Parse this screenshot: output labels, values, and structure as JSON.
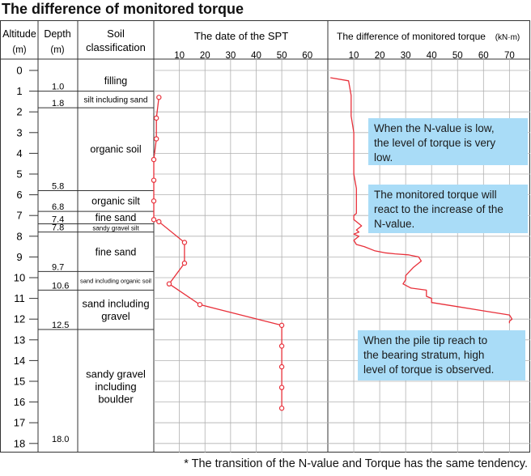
{
  "title": "The difference of monitored torque",
  "footnote": "* The transition of the N-value and Torque has the same tendency.",
  "headers": {
    "altitude": [
      "Altitude",
      "(m)"
    ],
    "depth": [
      "Depth",
      "(m)"
    ],
    "soil": [
      "Soil",
      "classification"
    ],
    "spt": "The date of the SPT",
    "torque": "The difference of monitored torque",
    "torque_unit": "(kN·m)"
  },
  "altitude_ticks": [
    "0",
    "1",
    "2",
    "3",
    "4",
    "5",
    "6",
    "7",
    "8",
    "9",
    "10",
    "11",
    "12",
    "13",
    "14",
    "15",
    "16",
    "17",
    "18"
  ],
  "depth_labels": [
    "1.0",
    "1.8",
    "5.8",
    "6.8",
    "7.4",
    "7.8",
    "9.7",
    "10.6",
    "12.5",
    "18.0"
  ],
  "soil_layers": [
    {
      "name": "filling",
      "lines": [
        "filling"
      ]
    },
    {
      "name": "silt including sand",
      "lines": [
        "silt including sand"
      ]
    },
    {
      "name": "organic soil",
      "lines": [
        "organic soil"
      ]
    },
    {
      "name": "organic silt",
      "lines": [
        "organic silt"
      ]
    },
    {
      "name": "fine sand",
      "lines": [
        "fine sand"
      ]
    },
    {
      "name": "sandy gravel silt",
      "lines": [
        "sandy gravel silt"
      ]
    },
    {
      "name": "fine sand",
      "lines": [
        "fine sand"
      ]
    },
    {
      "name": "sand including organic soil",
      "lines": [
        "sand including organic soil"
      ]
    },
    {
      "name": "sand including gravel",
      "lines": [
        "sand including",
        "gravel"
      ]
    },
    {
      "name": "sandy gravel including boulder",
      "lines": [
        "sandy gravel",
        "including",
        "boulder"
      ]
    }
  ],
  "annotations": [
    {
      "lines": [
        "When the N-value is low,",
        "the level of torque is very",
        "low."
      ]
    },
    {
      "lines": [
        "The monitored torque will",
        "react to the increase of the",
        "N-value."
      ]
    },
    {
      "lines": [
        "When the pile tip reach to",
        "the bearing stratum, high",
        "level of torque is observed."
      ]
    }
  ],
  "colors": {
    "series": "#e8303a",
    "grid": "#b0b0b0",
    "border": "#333333",
    "note_fill": "#a9dcf7"
  },
  "chart_data": [
    {
      "type": "line",
      "title": "The date of the SPT",
      "xlabel": "",
      "ylabel": "Altitude (m)",
      "xlim": [
        0,
        68
      ],
      "ylim": [
        0,
        18
      ],
      "x_ticks": [
        "10",
        "20",
        "30",
        "40",
        "50",
        "60"
      ],
      "y_inverted": true,
      "grid": true,
      "markers": true,
      "series": [
        {
          "x": [
            2,
            1,
            1,
            0,
            0,
            0,
            0,
            2,
            12,
            12,
            6,
            18,
            50,
            50,
            50,
            50,
            50
          ],
          "y": [
            1.3,
            2.3,
            3.3,
            4.3,
            5.3,
            6.3,
            7.2,
            7.3,
            8.3,
            9.3,
            10.3,
            11.3,
            12.3,
            13.3,
            14.3,
            15.3,
            16.3
          ]
        }
      ]
    },
    {
      "type": "line",
      "title": "The difference of monitored torque",
      "xlabel": "",
      "ylabel": "Altitude (m)",
      "unit": "kN·m",
      "xlim": [
        0,
        78
      ],
      "ylim": [
        0,
        18
      ],
      "x_ticks": [
        "10",
        "20",
        "30",
        "40",
        "50",
        "60",
        "70"
      ],
      "y_inverted": true,
      "grid": true,
      "markers": false,
      "series": [
        {
          "x": [
            1,
            8,
            9,
            9,
            10,
            10,
            10,
            10,
            11,
            11,
            11,
            11,
            10,
            10,
            12,
            13,
            11,
            12,
            10,
            12,
            10,
            11,
            14,
            18,
            22,
            26,
            31,
            35,
            36,
            33,
            30,
            30,
            29,
            32,
            38,
            38,
            40,
            40,
            50,
            60,
            70,
            71,
            70,
            70
          ],
          "y": [
            0.35,
            0.5,
            1.2,
            2.2,
            3.0,
            3.6,
            4.2,
            5.0,
            5.7,
            6.3,
            6.6,
            6.9,
            7.0,
            7.2,
            7.4,
            7.5,
            7.7,
            7.8,
            7.9,
            8.0,
            8.2,
            8.4,
            8.5,
            8.7,
            8.8,
            8.85,
            8.9,
            9.0,
            9.2,
            9.5,
            9.9,
            10.1,
            10.3,
            10.5,
            10.6,
            10.9,
            11.0,
            11.2,
            11.4,
            11.6,
            11.8,
            12.0,
            12.1,
            12.2
          ]
        }
      ]
    }
  ]
}
